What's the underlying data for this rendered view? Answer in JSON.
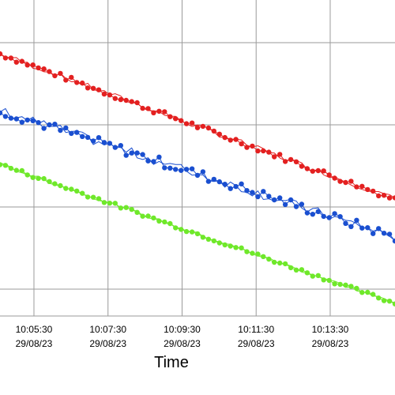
{
  "chart_data": {
    "type": "line",
    "title": "",
    "xlabel": "Time",
    "ylabel": "",
    "x_ticks": [
      {
        "time": "10:05:30",
        "date": "29/08/23"
      },
      {
        "time": "10:07:30",
        "date": "29/08/23"
      },
      {
        "time": "10:09:30",
        "date": "29/08/23"
      },
      {
        "time": "10:11:30",
        "date": "29/08/23"
      },
      {
        "time": "10:13:30",
        "date": "29/08/23"
      }
    ],
    "xlim": [
      "10:04:35",
      "10:15:15"
    ],
    "ylim": [
      0,
      100
    ],
    "grid": true,
    "legend": "none",
    "series": [
      {
        "color": "#e32020",
        "start": [
          "10:04:35",
          83
        ],
        "end": [
          "10:15:15",
          37
        ],
        "noise": 1.3
      },
      {
        "color": "#1a4fd0",
        "start": [
          "10:04:35",
          65
        ],
        "end": [
          "10:15:15",
          25
        ],
        "noise": 2.2
      },
      {
        "color": "#6fe82a",
        "start": [
          "10:04:35",
          48
        ],
        "end": [
          "10:15:15",
          4
        ],
        "noise": 0.8
      }
    ]
  }
}
